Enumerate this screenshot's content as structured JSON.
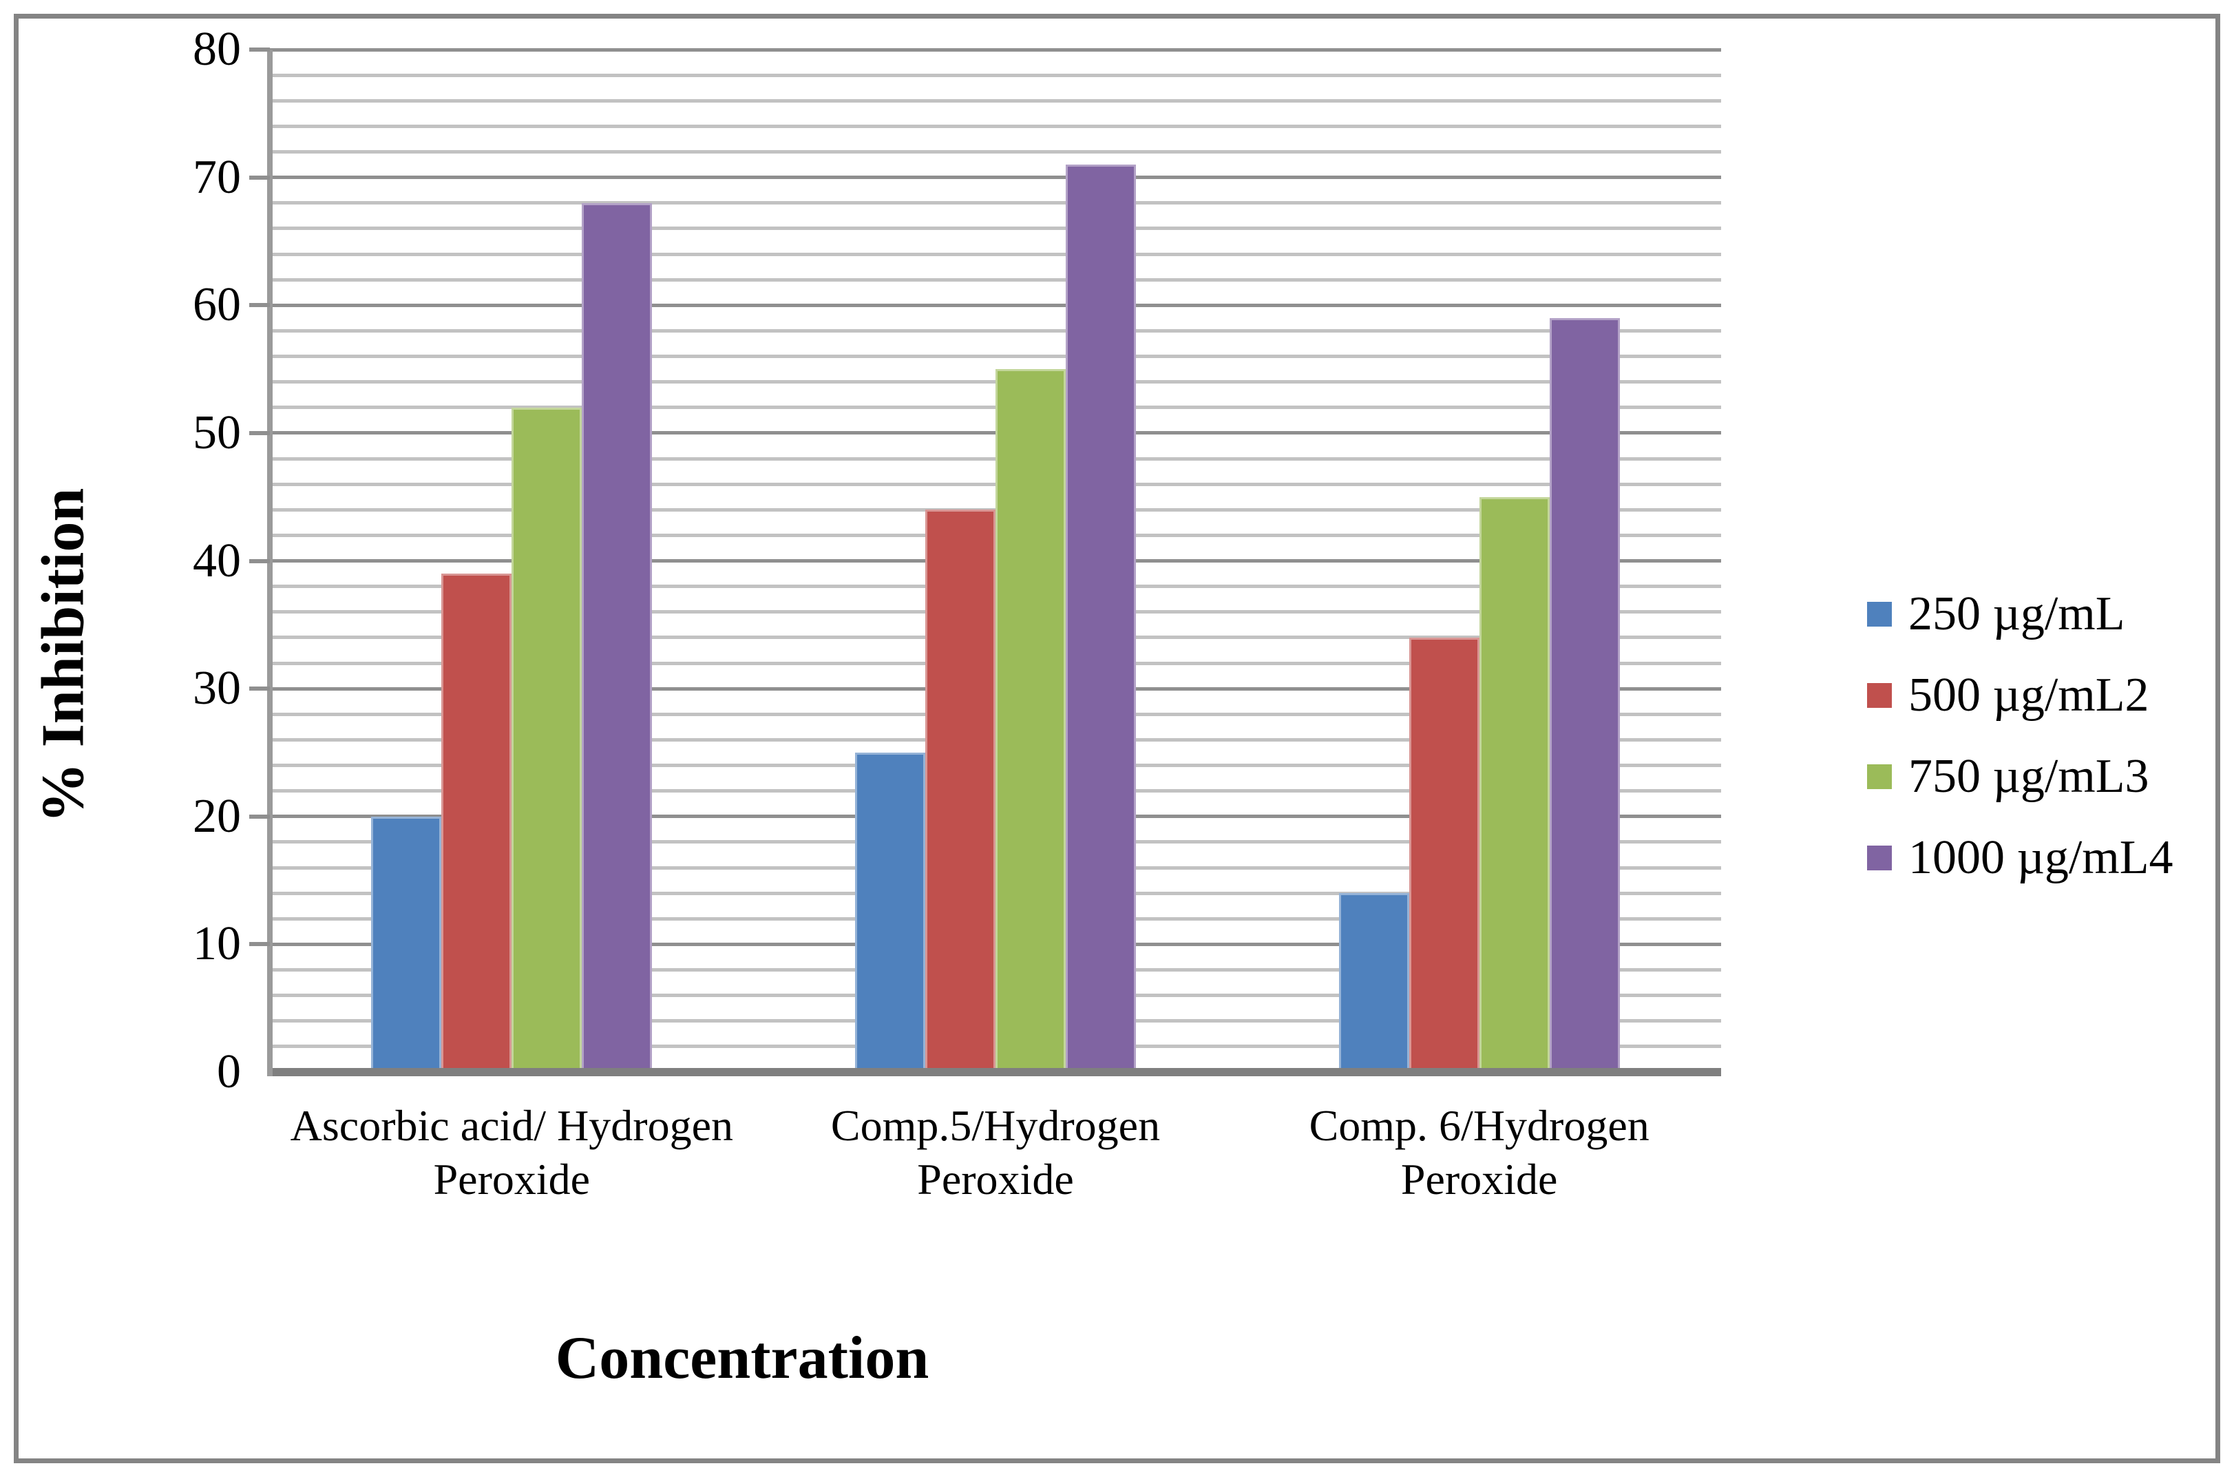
{
  "chart_data": {
    "type": "bar",
    "title": "",
    "xlabel": "Concentration",
    "ylabel": "% Inhibition",
    "ylim": [
      0,
      80
    ],
    "y_major_step": 10,
    "y_minor_step": 2,
    "y_ticks": [
      "0",
      "10",
      "20",
      "30",
      "40",
      "50",
      "60",
      "70",
      "80"
    ],
    "grid": "horizontal major+minor",
    "legend_position": "right",
    "categories": [
      "Ascorbic acid/  Hydrogen\nPeroxide",
      "Comp.5/Hydrogen\nPeroxide",
      "Comp. 6/Hydrogen\nPeroxide"
    ],
    "series": [
      {
        "name": "250 µg/mL",
        "color": "#4F81BD",
        "edge": "#95B3D7",
        "values": [
          20,
          25,
          14
        ]
      },
      {
        "name": "500 µg/mL2",
        "color": "#C0504D",
        "edge": "#D99694",
        "values": [
          39,
          44,
          34
        ]
      },
      {
        "name": "750 µg/mL3",
        "color": "#9BBB59",
        "edge": "#C3D69B",
        "values": [
          52,
          55,
          45
        ]
      },
      {
        "name": "1000 µg/mL4",
        "color": "#8064A2",
        "edge": "#B3A2C7",
        "values": [
          68,
          71,
          59
        ]
      }
    ]
  },
  "colors": {
    "background": "#ffffff",
    "frame_border": "#848484",
    "axis_line": "#9a9a9a",
    "baseline": "#7f7f7f",
    "gridline_major": "#8f8f8f",
    "gridline_minor": "#c2c2c2",
    "text": "#000000"
  }
}
